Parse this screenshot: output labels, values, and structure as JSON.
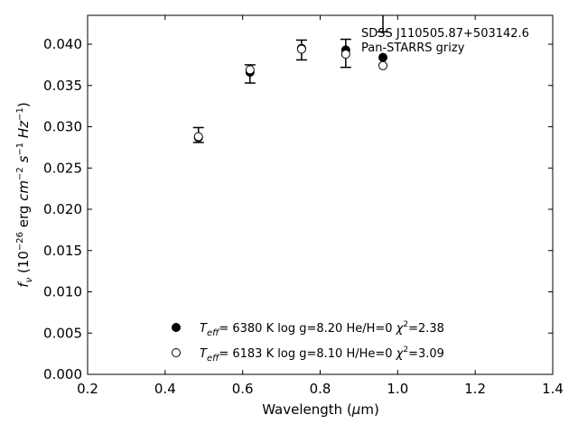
{
  "chart_data": {
    "type": "scatter",
    "xlabel": "Wavelength (μm)",
    "ylabel": "f_ν (10^-26 erg cm^-2 s^-1 Hz^-1)",
    "xlim": [
      0.2,
      1.4
    ],
    "ylim": [
      0.0,
      0.0435
    ],
    "x_ticks": [
      0.2,
      0.4,
      0.6,
      0.8,
      1.0,
      1.2,
      1.4
    ],
    "x_tick_labels": [
      "0.2",
      "0.4",
      "0.6",
      "0.8",
      "1.0",
      "1.2",
      "1.4"
    ],
    "y_ticks": [
      0.0,
      0.005,
      0.01,
      0.015,
      0.02,
      0.025,
      0.03,
      0.035,
      0.04
    ],
    "y_tick_labels": [
      "0.000",
      "0.005",
      "0.010",
      "0.015",
      "0.020",
      "0.025",
      "0.030",
      "0.035",
      "0.040"
    ],
    "grid": false,
    "annotations": [
      "SDSS J110505.87+503142.6",
      "Pan-STARRS grizy"
    ],
    "observed": {
      "x": [
        0.486,
        0.619,
        0.752,
        0.866,
        0.962
      ],
      "y": [
        0.029,
        0.0364,
        0.0393,
        0.0389,
        0.044
      ],
      "err": [
        0.0009,
        0.0011,
        0.0012,
        0.0017,
        0.0025
      ]
    },
    "series": [
      {
        "model": "H",
        "marker": "filled-circle",
        "teff": "6380 K",
        "logg": "log g=8.20",
        "comp": "He/H=0",
        "chi2": "=2.38",
        "x": [
          0.486,
          0.619,
          0.752,
          0.866,
          0.962
        ],
        "y": [
          0.0287,
          0.0366,
          0.0395,
          0.0393,
          0.0384
        ]
      },
      {
        "model": "He",
        "marker": "open-circle",
        "teff": "6183 K",
        "logg": "log g=8.10",
        "comp": "H/He=0",
        "chi2": "=3.09",
        "x": [
          0.486,
          0.619,
          0.752,
          0.866,
          0.962
        ],
        "y": [
          0.0288,
          0.0369,
          0.0394,
          0.0388,
          0.0374
        ]
      }
    ]
  }
}
